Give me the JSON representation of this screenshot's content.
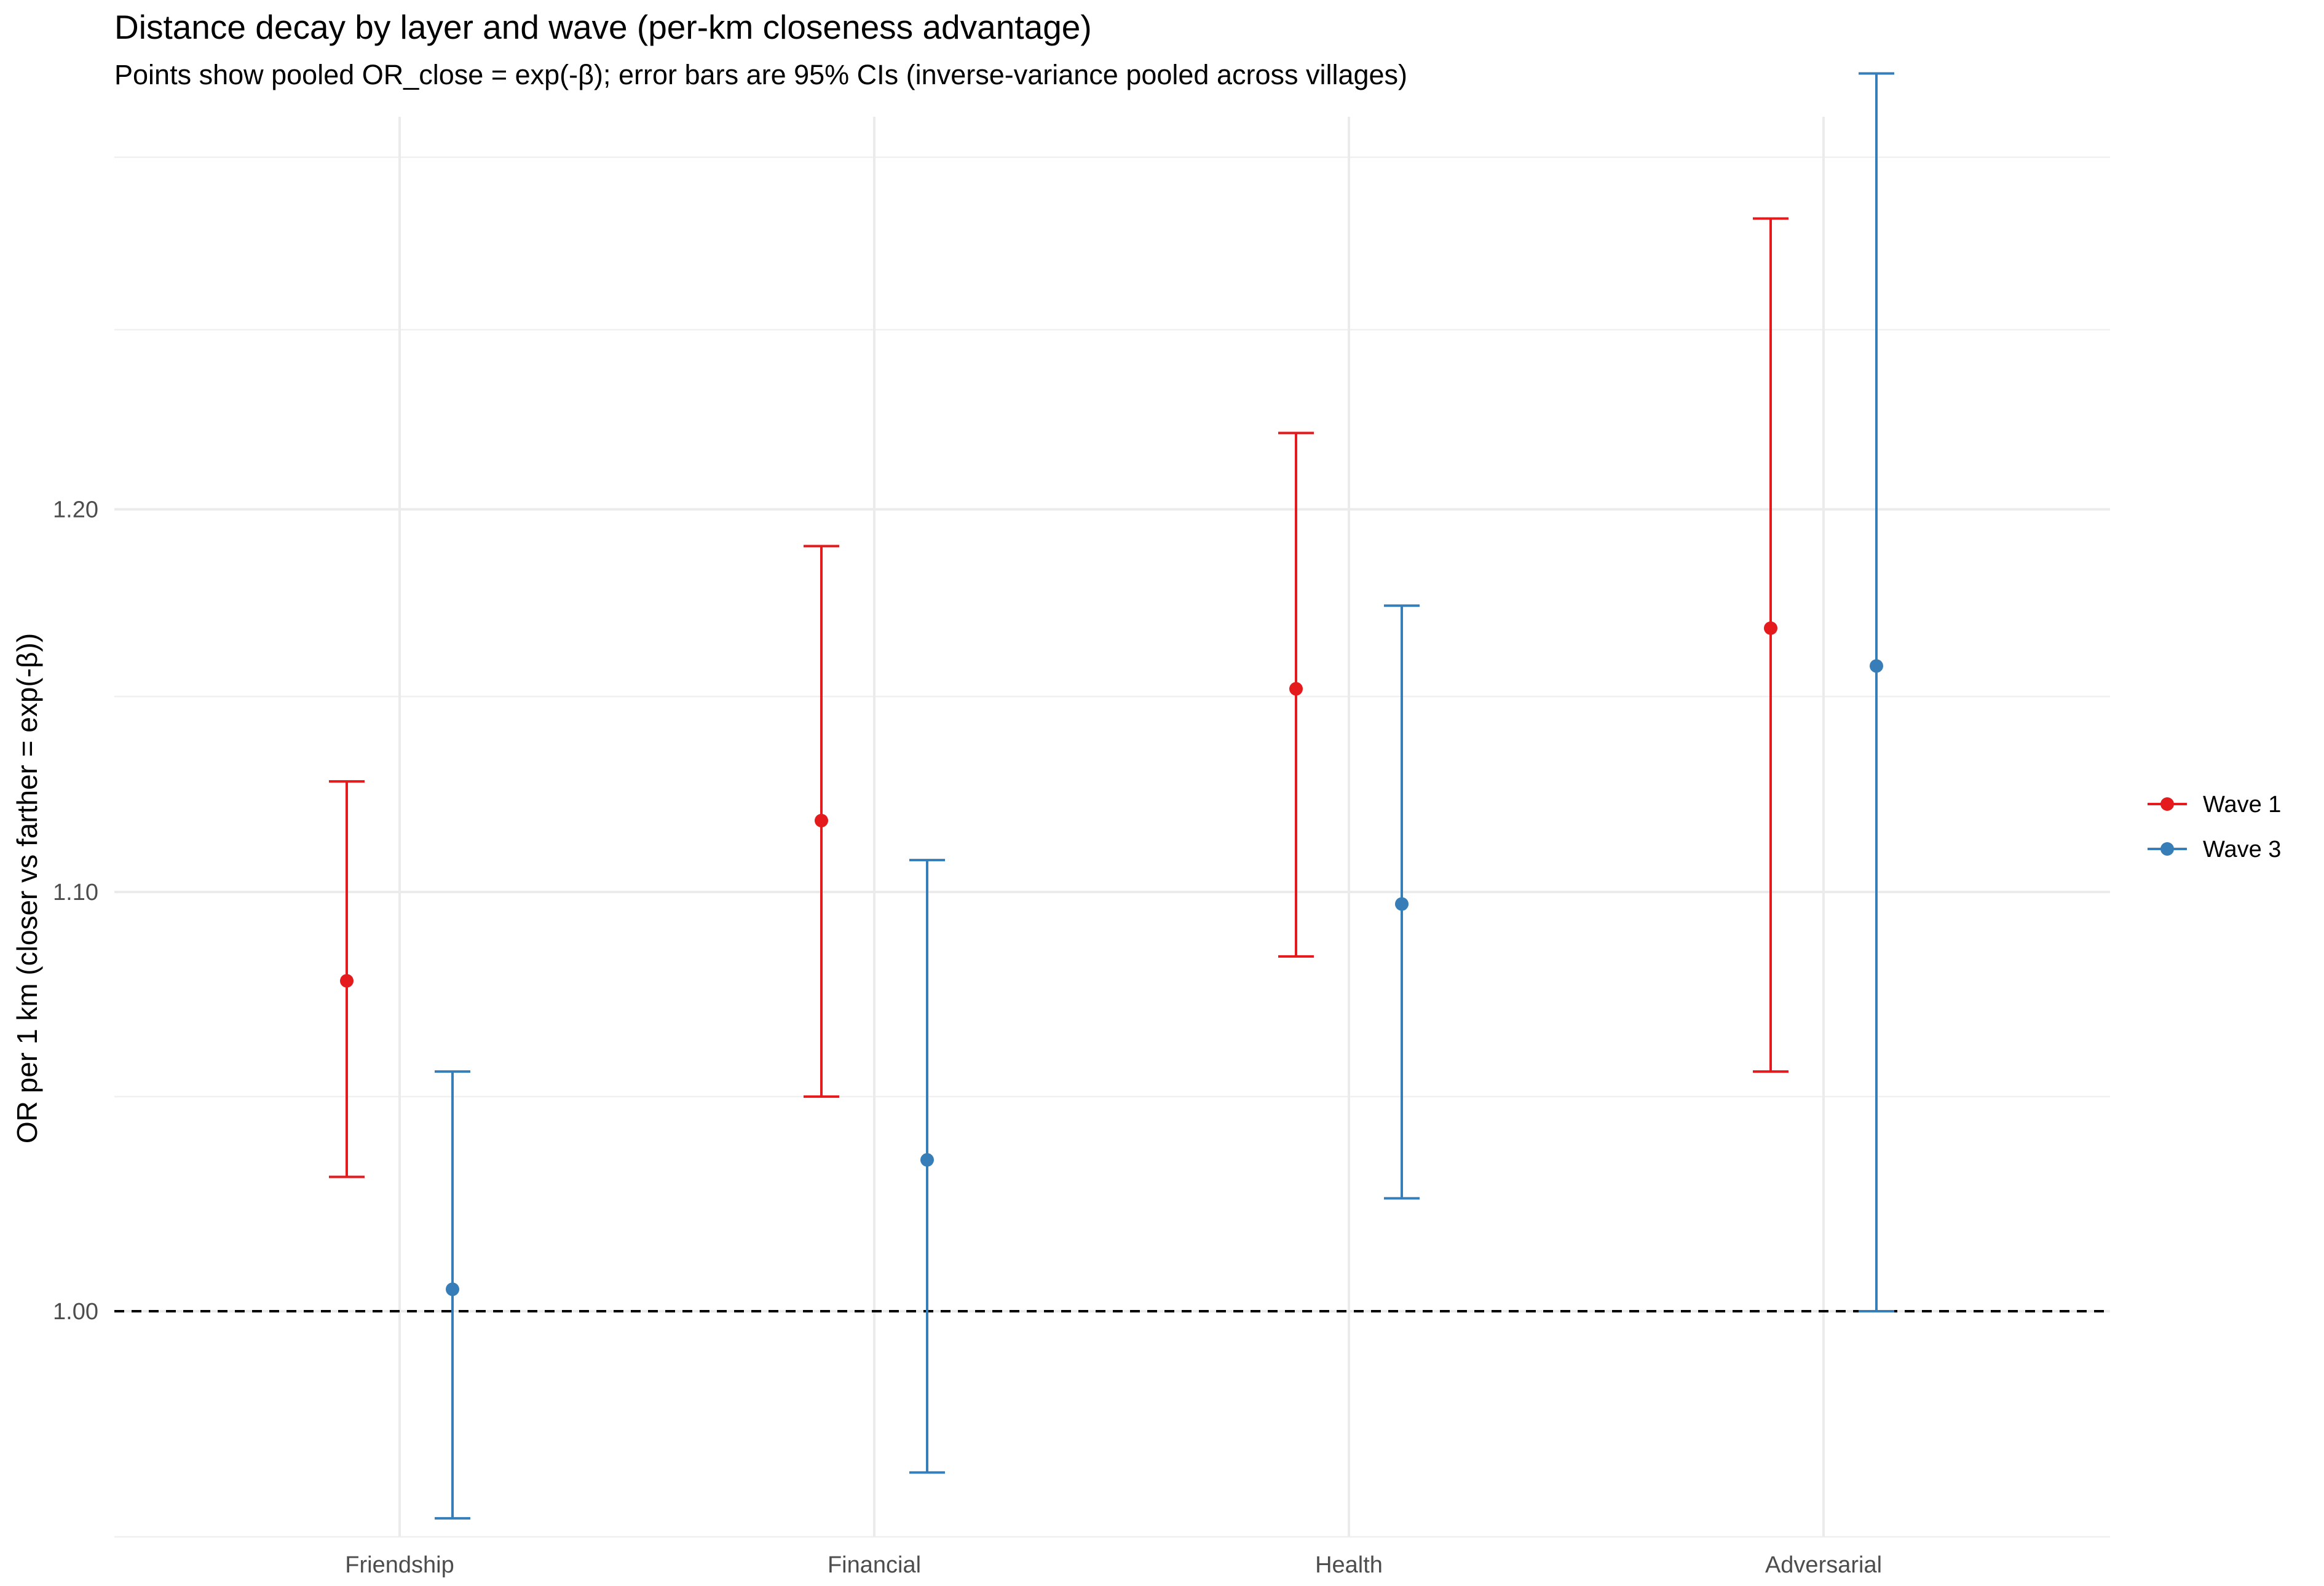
{
  "chart_data": {
    "type": "scatter",
    "title": "Distance decay by layer and wave (per-km closeness advantage)",
    "subtitle": "Points show pooled OR_close = exp(-β); error bars are 95% CIs (inverse-variance pooled across villages)",
    "xlabel": "",
    "ylabel": "OR per 1 km (closer vs farther = exp(-β))",
    "categories": [
      "Friendship",
      "Financial",
      "Health",
      "Adversarial"
    ],
    "ylim": [
      0.95,
      1.312
    ],
    "y_scale": "log",
    "y_ticks": [
      1.0,
      1.1,
      1.2
    ],
    "y_tick_labels": [
      "1.00",
      "1.10",
      "1.20"
    ],
    "y_minor_ticks": [
      0.95,
      1.05,
      1.15,
      1.25,
      1.3
    ],
    "grid": true,
    "reference_line": {
      "y": 1.0,
      "style": "dashed",
      "color": "#000000"
    },
    "legend": {
      "position": "right"
    },
    "series": [
      {
        "name": "Wave 1",
        "color": "#E41A1C",
        "values": [
          1.078,
          1.118,
          1.152,
          1.168
        ],
        "ci_low": [
          1.031,
          1.05,
          1.084,
          1.056
        ],
        "ci_high": [
          1.128,
          1.19,
          1.221,
          1.282
        ]
      },
      {
        "name": "Wave 3",
        "color": "#377EB8",
        "values": [
          1.005,
          1.035,
          1.097,
          1.158
        ],
        "ci_low": [
          0.954,
          0.964,
          1.026,
          1.0
        ],
        "ci_high": [
          1.056,
          1.108,
          1.174,
          1.325
        ]
      }
    ]
  }
}
